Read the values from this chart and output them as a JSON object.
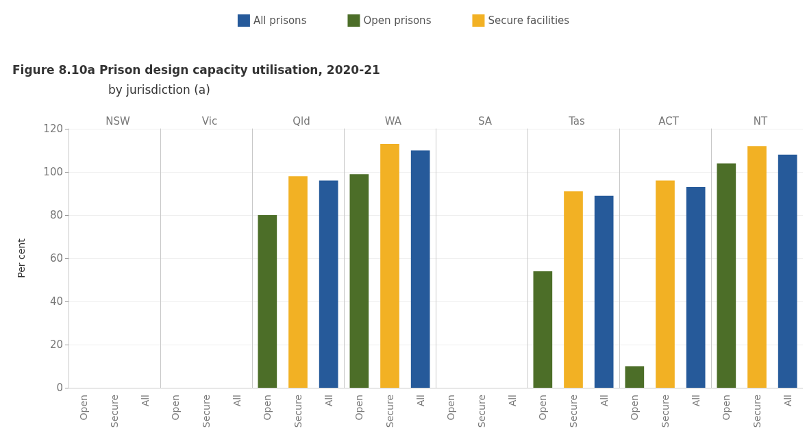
{
  "chart_data": [
    {
      "type": "bar",
      "title": "NSW",
      "annotations": [
        "Figure 8.10a Prison design capacity utilisation, 2020-21",
        "by jurisdiction (a)"
      ],
      "ylabel": "Per cent",
      "categories": [
        "Open",
        "Secure",
        "All"
      ],
      "stacked": true,
      "legend": "top",
      "grid": "y",
      "ylim": [
        0,
        120
      ],
      "yticks": [
        0,
        20,
        40,
        60,
        80,
        100,
        120
      ],
      "series": [
        {
          "name": "All prisons",
          "color": "#265a9a",
          "values": [
            null,
            null,
            null
          ]
        },
        {
          "name": "Open prisons",
          "color": "#4c6e28",
          "values": [
            null,
            null,
            null
          ]
        },
        {
          "name": "Secure facilities",
          "color": "#f2b124",
          "values": [
            null,
            null,
            null
          ]
        }
      ]
    },
    {
      "type": "bar",
      "title": "Vic",
      "categories": [
        "Open",
        "Secure",
        "All"
      ],
      "stacked": true,
      "grid": "y",
      "tick_labels": "x",
      "ylim": [
        0,
        120
      ],
      "yticks": [
        0,
        20,
        40,
        60,
        80,
        100,
        120
      ],
      "series": [
        {
          "color": "#265a9a",
          "values": [
            null,
            null,
            null
          ]
        },
        {
          "color": "#4c6e28",
          "values": [
            null,
            null,
            null
          ]
        },
        {
          "color": "#f2b124",
          "values": [
            null,
            null,
            null
          ]
        }
      ]
    },
    {
      "type": "bar",
      "title": "Qld",
      "categories": [
        "Open",
        "Secure",
        "All"
      ],
      "stacked": true,
      "grid": "y",
      "tick_labels": "x",
      "ylim": [
        0,
        120
      ],
      "yticks": [
        0,
        20,
        40,
        60,
        80,
        100,
        120
      ],
      "series": [
        {
          "color": "#265a9a",
          "values": [
            null,
            null,
            96
          ]
        },
        {
          "color": "#4c6e28",
          "values": [
            80,
            null,
            null
          ]
        },
        {
          "color": "#f2b124",
          "values": [
            null,
            98,
            null
          ]
        }
      ]
    },
    {
      "type": "bar",
      "title": "WA",
      "categories": [
        "Open",
        "Secure",
        "All"
      ],
      "stacked": true,
      "grid": "y",
      "tick_labels": "x",
      "ylim": [
        0,
        120
      ],
      "yticks": [
        0,
        20,
        40,
        60,
        80,
        100,
        120
      ],
      "series": [
        {
          "color": "#265a9a",
          "values": [
            null,
            null,
            110
          ]
        },
        {
          "color": "#4c6e28",
          "values": [
            99,
            null,
            null
          ]
        },
        {
          "color": "#f2b124",
          "values": [
            null,
            113,
            null
          ]
        }
      ]
    },
    {
      "type": "bar",
      "title": "SA",
      "categories": [
        "Open",
        "Secure",
        "All"
      ],
      "stacked": true,
      "grid": "y",
      "tick_labels": "x",
      "ylim": [
        0,
        120
      ],
      "yticks": [
        0,
        20,
        40,
        60,
        80,
        100,
        120
      ],
      "series": [
        {
          "color": "#265a9a",
          "values": [
            null,
            null,
            null
          ]
        },
        {
          "color": "#4c6e28",
          "values": [
            null,
            null,
            null
          ]
        },
        {
          "color": "#f2b124",
          "values": [
            null,
            null,
            null
          ]
        }
      ]
    },
    {
      "type": "bar",
      "title": "Tas",
      "categories": [
        "Open",
        "Secure",
        "All"
      ],
      "stacked": true,
      "grid": "y",
      "tick_labels": "x",
      "ylim": [
        0,
        120
      ],
      "yticks": [
        0,
        20,
        40,
        60,
        80,
        100,
        120
      ],
      "series": [
        {
          "color": "#265a9a",
          "values": [
            null,
            null,
            89
          ]
        },
        {
          "color": "#4c6e28",
          "values": [
            54,
            null,
            null
          ]
        },
        {
          "color": "#f2b124",
          "values": [
            null,
            91,
            null
          ]
        }
      ]
    },
    {
      "type": "bar",
      "title": "ACT",
      "categories": [
        "Open",
        "Secure",
        "All"
      ],
      "stacked": true,
      "grid": "y",
      "tick_labels": "x",
      "ylim": [
        0,
        120
      ],
      "yticks": [
        0,
        20,
        40,
        60,
        80,
        100,
        120
      ],
      "series": [
        {
          "color": "#265a9a",
          "values": [
            null,
            null,
            93
          ]
        },
        {
          "color": "#4c6e28",
          "values": [
            10,
            null,
            null
          ]
        },
        {
          "color": "#f2b124",
          "values": [
            null,
            96,
            null
          ]
        }
      ]
    },
    {
      "type": "bar",
      "title": "NT",
      "categories": [
        "Open",
        "Secure",
        "All"
      ],
      "stacked": true,
      "grid": "y",
      "tick_labels": "x",
      "ylim": [
        0,
        120
      ],
      "yticks": [
        0,
        20,
        40,
        60,
        80,
        100,
        120
      ],
      "series": [
        {
          "color": "#265a9a",
          "values": [
            null,
            null,
            108
          ]
        },
        {
          "color": "#4c6e28",
          "values": [
            104,
            null,
            null
          ]
        },
        {
          "color": "#f2b124",
          "values": [
            null,
            112,
            null
          ]
        }
      ]
    }
  ]
}
